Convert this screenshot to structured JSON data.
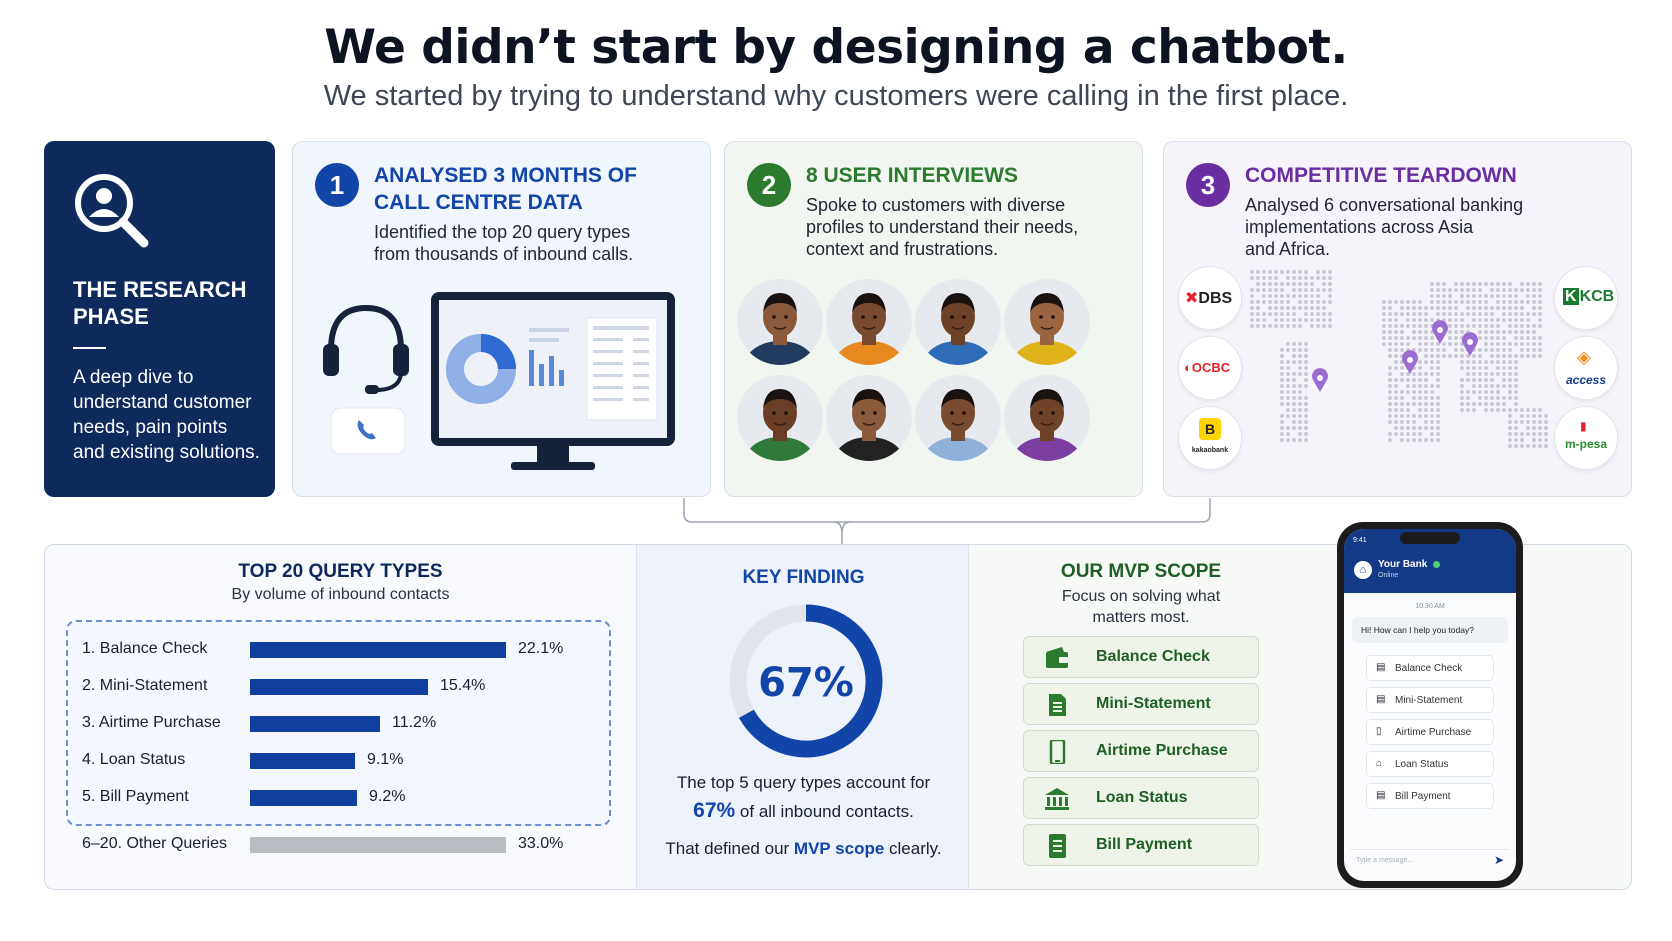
{
  "header": {
    "title": "We didn’t start by designing a chatbot.",
    "subtitle": "We started by trying to understand why customers were calling in the first place."
  },
  "research": {
    "title_line1": "THE RESEARCH",
    "title_line2": "PHASE",
    "desc_lines": [
      "A deep dive to",
      "understand customer",
      "needs, pain points",
      "and existing solutions."
    ]
  },
  "panels": [
    {
      "number": "1",
      "title_lines": [
        "ANALYSED 3 MONTHS OF",
        "CALL CENTRE DATA"
      ],
      "desc_lines": [
        "Identified the top 20 query types",
        "from thousands of inbound calls."
      ],
      "color": "#1245a8"
    },
    {
      "number": "2",
      "title_lines": [
        "8 USER INTERVIEWS"
      ],
      "desc_lines": [
        "Spoke to customers with diverse",
        "profiles to understand their needs,",
        "context and frustrations."
      ],
      "color": "#2b7a2e"
    },
    {
      "number": "3",
      "title_lines": [
        "COMPETITIVE TEARDOWN"
      ],
      "desc_lines": [
        "Analysed 6 conversational banking",
        "implementations across Asia",
        "and Africa."
      ],
      "color": "#6a2ea1",
      "logos": [
        "DBS",
        "OCBC",
        "kakaobank",
        "KCB",
        "access",
        "m-pesa"
      ]
    }
  ],
  "queries": {
    "title": "TOP 20 QUERY TYPES",
    "subtitle": "By volume of inbound contacts",
    "items": [
      {
        "label": "1.   Balance Check",
        "pct": 22.1,
        "value": "22.1%"
      },
      {
        "label": "2.   Mini-Statement",
        "pct": 15.4,
        "value": "15.4%"
      },
      {
        "label": "3.   Airtime Purchase",
        "pct": 11.2,
        "value": "11.2%"
      },
      {
        "label": "4.   Loan Status",
        "pct": 9.1,
        "value": "9.1%"
      },
      {
        "label": "5.   Bill Payment",
        "pct": 9.2,
        "value": "9.2%"
      }
    ],
    "other": {
      "label": "6–20. Other Queries",
      "pct": 33.0,
      "value": "33.0%"
    }
  },
  "key_finding": {
    "title": "KEY FINDING",
    "pct_label": "67%",
    "fraction": 0.67,
    "text1": "The top 5 query types account for",
    "text2_pct": "67%",
    "text2_rest": " of all inbound contacts.",
    "text3_pre": "That defined our ",
    "text3_bold": "MVP scope",
    "text3_post": " clearly."
  },
  "mvp": {
    "title": "OUR MVP SCOPE",
    "subtitle_lines": [
      "Focus on solving what",
      "matters most."
    ],
    "items": [
      {
        "label": "Balance Check",
        "icon": "wallet-icon"
      },
      {
        "label": "Mini-Statement",
        "icon": "document-icon"
      },
      {
        "label": "Airtime Purchase",
        "icon": "mobile-phone-icon"
      },
      {
        "label": "Loan Status",
        "icon": "bank-icon"
      },
      {
        "label": "Bill Payment",
        "icon": "receipt-icon"
      }
    ]
  },
  "phone": {
    "status_time": "9:41",
    "bank_name": "Your Bank",
    "status": "Online",
    "time": "10:30 AM",
    "greeting": "Hi! How can I help you today?",
    "options": [
      "Balance Check",
      "Mini-Statement",
      "Airtime Purchase",
      "Loan Status",
      "Bill Payment"
    ],
    "input_placeholder": "Type a message..."
  },
  "colors": {
    "navy": "#0e2a5c",
    "bar_blue": "#103f9e",
    "green": "#2b7a2e",
    "purple": "#6a2ea1",
    "gray_bar": "#b9bcc2"
  }
}
